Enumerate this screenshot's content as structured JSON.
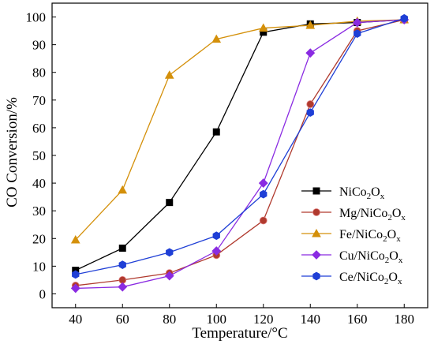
{
  "chart_data": {
    "type": "line",
    "xlabel": "Temperature/°C",
    "ylabel": "CO Conversion/%",
    "xlim": [
      30,
      190
    ],
    "ylim": [
      -5,
      105
    ],
    "x_ticks": [
      40,
      60,
      80,
      100,
      120,
      140,
      160,
      180
    ],
    "y_ticks": [
      0,
      10,
      20,
      30,
      40,
      50,
      60,
      70,
      80,
      90,
      100
    ],
    "grid": false,
    "legend_position": "lower-right",
    "x": [
      40,
      60,
      80,
      100,
      120,
      140,
      160,
      180
    ],
    "series": [
      {
        "name": "NiCo2Ox",
        "label_parts": [
          [
            "NiCo",
            false
          ],
          [
            "2",
            true
          ],
          [
            "O",
            false
          ],
          [
            "x",
            true
          ]
        ],
        "color": "#000000",
        "marker": "square",
        "values": [
          8.5,
          16.5,
          33,
          58.5,
          94.5,
          97.5,
          98,
          99
        ]
      },
      {
        "name": "Mg/NiCo2Ox",
        "label_parts": [
          [
            "Mg/NiCo",
            false
          ],
          [
            "2",
            true
          ],
          [
            "O",
            false
          ],
          [
            "x",
            true
          ]
        ],
        "color": "#b03a2e",
        "marker": "circle",
        "values": [
          3,
          5,
          7.5,
          14,
          26.5,
          68.5,
          95,
          99
        ]
      },
      {
        "name": "Fe/NiCo2Ox",
        "label_parts": [
          [
            "Fe/NiCo",
            false
          ],
          [
            "2",
            true
          ],
          [
            "O",
            false
          ],
          [
            "x",
            true
          ]
        ],
        "color": "#d4900a",
        "marker": "triangle",
        "values": [
          19.5,
          37.5,
          79,
          92,
          96,
          97,
          98.5,
          99
        ]
      },
      {
        "name": "Cu/NiCo2Ox",
        "label_parts": [
          [
            "Cu/NiCo",
            false
          ],
          [
            "2",
            true
          ],
          [
            "O",
            false
          ],
          [
            "x",
            true
          ]
        ],
        "color": "#8a2be2",
        "marker": "diamond",
        "values": [
          2,
          2.5,
          6.5,
          15.5,
          40,
          87,
          98,
          99
        ]
      },
      {
        "name": "Ce/NiCo2Ox",
        "label_parts": [
          [
            "Ce/NiCo",
            false
          ],
          [
            "2",
            true
          ],
          [
            "O",
            false
          ],
          [
            "x",
            true
          ]
        ],
        "color": "#1f3fd6",
        "marker": "hexagon",
        "values": [
          7,
          10.5,
          15,
          21,
          36,
          65.5,
          94,
          99.5
        ]
      }
    ]
  }
}
